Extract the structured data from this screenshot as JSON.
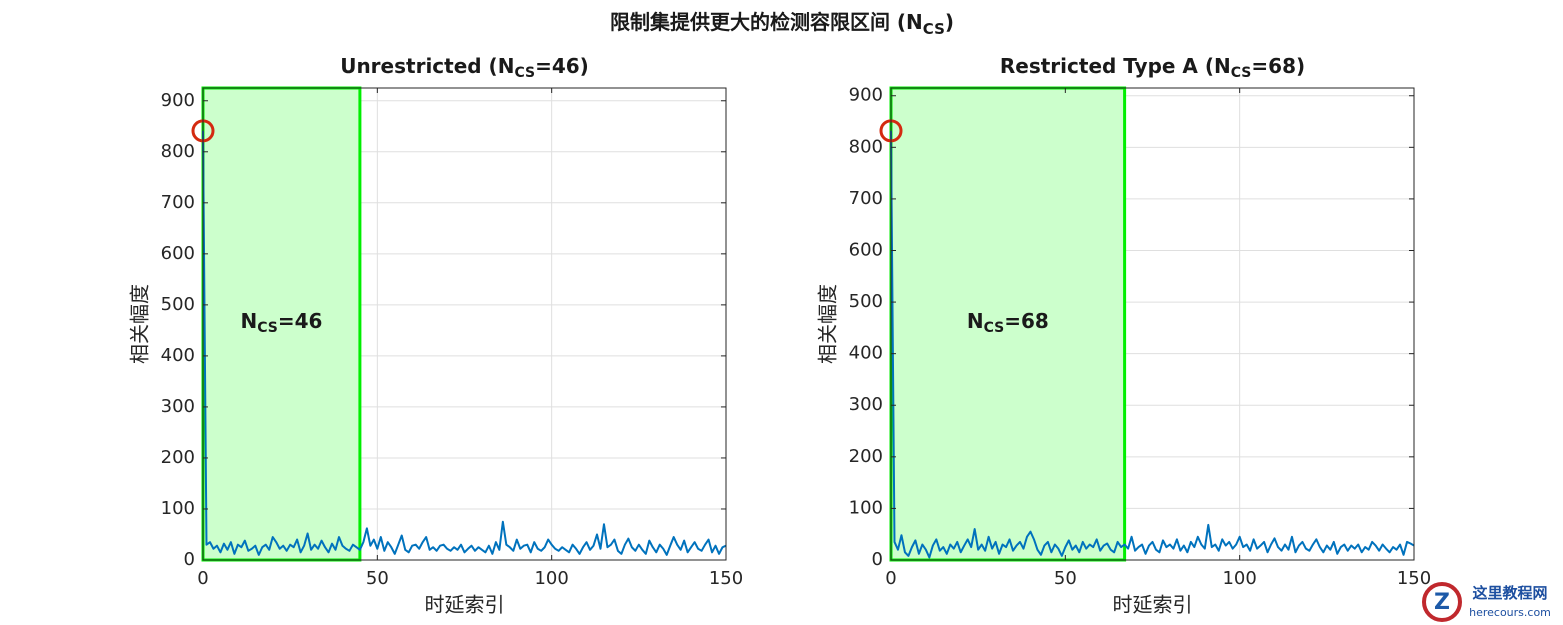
{
  "title_parts": [
    "限制集提供更大的检测容限区间 (N",
    "CS",
    ")"
  ],
  "watermark": [
    "这里教程网",
    "herecours.com"
  ],
  "chart_data": [
    {
      "type": "line",
      "title_parts": [
        "Unrestricted  (N",
        "CS",
        "=46)"
      ],
      "xlabel": "时延索引",
      "ylabel": "相关幅度",
      "xlim": [
        0,
        150
      ],
      "ylim": [
        0,
        925
      ],
      "xticks": [
        0,
        50,
        100,
        150
      ],
      "yticks": [
        0,
        100,
        200,
        300,
        400,
        500,
        600,
        700,
        800,
        900
      ],
      "grid": true,
      "shaded_xrange": [
        0,
        45
      ],
      "shade_color": "#ccffcc",
      "shade_edge": "#00ee00",
      "annotation_parts": [
        "N",
        "CS",
        "=46"
      ],
      "peak_marker_color": "#d42a10",
      "x": [
        0,
        1,
        2,
        3,
        4,
        5,
        6,
        7,
        8,
        9,
        10,
        11,
        12,
        13,
        14,
        15,
        16,
        17,
        18,
        19,
        20,
        21,
        22,
        23,
        24,
        25,
        26,
        27,
        28,
        29,
        30,
        31,
        32,
        33,
        34,
        35,
        36,
        37,
        38,
        39,
        40,
        41,
        42,
        43,
        44,
        45,
        46,
        47,
        48,
        49,
        50,
        51,
        52,
        53,
        54,
        55,
        56,
        57,
        58,
        59,
        60,
        61,
        62,
        63,
        64,
        65,
        66,
        67,
        68,
        69,
        70,
        71,
        72,
        73,
        74,
        75,
        76,
        77,
        78,
        79,
        80,
        81,
        82,
        83,
        84,
        85,
        86,
        87,
        88,
        89,
        90,
        91,
        92,
        93,
        94,
        95,
        96,
        97,
        98,
        99,
        100,
        101,
        102,
        103,
        104,
        105,
        106,
        107,
        108,
        109,
        110,
        111,
        112,
        113,
        114,
        115,
        116,
        117,
        118,
        119,
        120,
        121,
        122,
        123,
        124,
        125,
        126,
        127,
        128,
        129,
        130,
        131,
        132,
        133,
        134,
        135,
        136,
        137,
        138,
        139,
        140,
        141,
        142,
        143,
        144,
        145,
        146,
        147,
        148,
        149,
        150
      ],
      "series": [
        {
          "color": "#0072bd",
          "values": [
            841,
            30,
            35,
            22,
            28,
            15,
            32,
            20,
            35,
            12,
            30,
            25,
            38,
            18,
            22,
            28,
            10,
            25,
            30,
            20,
            45,
            35,
            22,
            28,
            18,
            30,
            25,
            40,
            15,
            28,
            52,
            20,
            30,
            22,
            38,
            25,
            15,
            32,
            20,
            45,
            28,
            22,
            18,
            30,
            25,
            20,
            35,
            62,
            28,
            40,
            22,
            45,
            18,
            35,
            25,
            12,
            30,
            48,
            20,
            15,
            28,
            30,
            22,
            35,
            45,
            20,
            25,
            18,
            28,
            30,
            22,
            18,
            25,
            20,
            30,
            15,
            22,
            28,
            18,
            25,
            20,
            15,
            28,
            12,
            35,
            20,
            75,
            30,
            25,
            18,
            40,
            22,
            28,
            30,
            15,
            35,
            22,
            18,
            25,
            40,
            30,
            22,
            18,
            25,
            20,
            15,
            30,
            22,
            12,
            25,
            35,
            20,
            28,
            50,
            22,
            70,
            25,
            30,
            40,
            18,
            12,
            30,
            42,
            25,
            18,
            30,
            20,
            12,
            38,
            25,
            15,
            30,
            22,
            10,
            28,
            45,
            30,
            20,
            38,
            15,
            25,
            35,
            22,
            18,
            30,
            40,
            15,
            28,
            12,
            25,
            28
          ]
        }
      ]
    },
    {
      "type": "line",
      "title_parts": [
        "Restricted  Type  A  (N",
        "CS",
        "=68)"
      ],
      "xlabel": "时延索引",
      "ylabel": "相关幅度",
      "xlim": [
        0,
        150
      ],
      "ylim": [
        0,
        915
      ],
      "xticks": [
        0,
        50,
        100,
        150
      ],
      "yticks": [
        0,
        100,
        200,
        300,
        400,
        500,
        600,
        700,
        800,
        900
      ],
      "grid": true,
      "shaded_xrange": [
        0,
        67
      ],
      "shade_color": "#ccffcc",
      "shade_edge": "#00ee00",
      "annotation_parts": [
        "N",
        "CS",
        "=68"
      ],
      "peak_marker_color": "#d42a10",
      "x": [
        0,
        1,
        2,
        3,
        4,
        5,
        6,
        7,
        8,
        9,
        10,
        11,
        12,
        13,
        14,
        15,
        16,
        17,
        18,
        19,
        20,
        21,
        22,
        23,
        24,
        25,
        26,
        27,
        28,
        29,
        30,
        31,
        32,
        33,
        34,
        35,
        36,
        37,
        38,
        39,
        40,
        41,
        42,
        43,
        44,
        45,
        46,
        47,
        48,
        49,
        50,
        51,
        52,
        53,
        54,
        55,
        56,
        57,
        58,
        59,
        60,
        61,
        62,
        63,
        64,
        65,
        66,
        67,
        68,
        69,
        70,
        71,
        72,
        73,
        74,
        75,
        76,
        77,
        78,
        79,
        80,
        81,
        82,
        83,
        84,
        85,
        86,
        87,
        88,
        89,
        90,
        91,
        92,
        93,
        94,
        95,
        96,
        97,
        98,
        99,
        100,
        101,
        102,
        103,
        104,
        105,
        106,
        107,
        108,
        109,
        110,
        111,
        112,
        113,
        114,
        115,
        116,
        117,
        118,
        119,
        120,
        121,
        122,
        123,
        124,
        125,
        126,
        127,
        128,
        129,
        130,
        131,
        132,
        133,
        134,
        135,
        136,
        137,
        138,
        139,
        140,
        141,
        142,
        143,
        144,
        145,
        146,
        147,
        148,
        149,
        150
      ],
      "series": [
        {
          "color": "#0072bd",
          "values": [
            832,
            35,
            20,
            48,
            15,
            8,
            25,
            38,
            12,
            30,
            20,
            5,
            28,
            40,
            18,
            25,
            12,
            30,
            22,
            35,
            15,
            28,
            40,
            25,
            60,
            20,
            30,
            18,
            45,
            22,
            35,
            12,
            30,
            25,
            40,
            18,
            28,
            35,
            22,
            45,
            55,
            40,
            20,
            10,
            28,
            35,
            15,
            30,
            22,
            8,
            25,
            38,
            20,
            28,
            15,
            35,
            22,
            30,
            25,
            40,
            18,
            28,
            32,
            20,
            15,
            35,
            25,
            30,
            22,
            45,
            18,
            25,
            30,
            12,
            28,
            35,
            20,
            15,
            38,
            25,
            30,
            22,
            40,
            18,
            28,
            15,
            35,
            25,
            45,
            30,
            22,
            68,
            25,
            30,
            18,
            40,
            28,
            35,
            22,
            30,
            45,
            25,
            30,
            18,
            40,
            22,
            28,
            35,
            15,
            30,
            42,
            25,
            18,
            30,
            20,
            45,
            15,
            28,
            35,
            22,
            18,
            30,
            40,
            25,
            15,
            28,
            20,
            35,
            12,
            25,
            30,
            18,
            28,
            22,
            30,
            15,
            25,
            20,
            35,
            28,
            18,
            30,
            22,
            15,
            25,
            20,
            30,
            10,
            35,
            32,
            28
          ]
        }
      ]
    }
  ]
}
